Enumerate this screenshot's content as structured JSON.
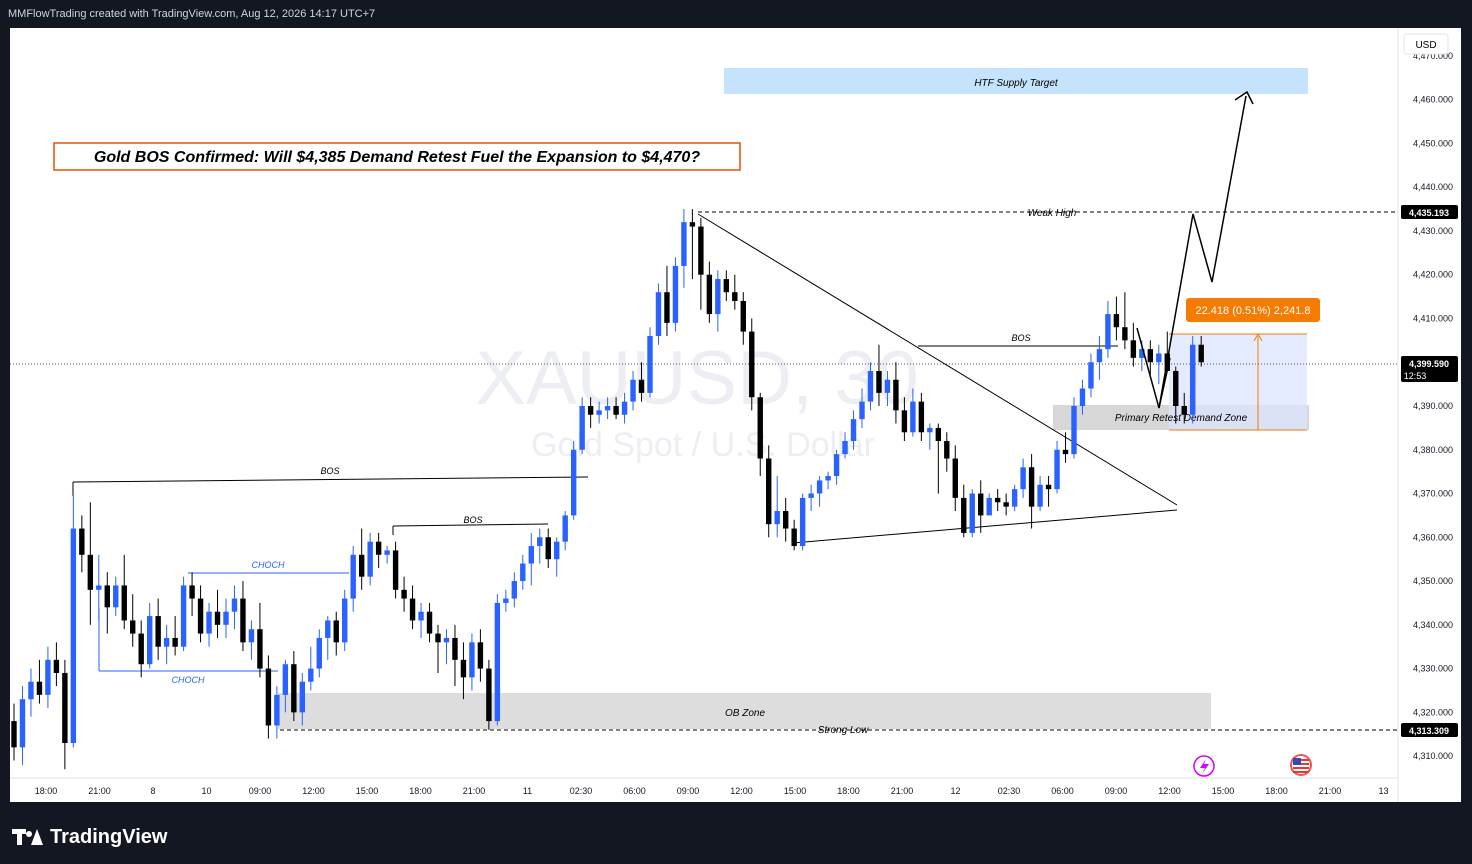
{
  "header": {
    "attribution": "MMFlowTrading created with TradingView.com, Aug 12, 2026 14:17 UTC+7"
  },
  "footer": {
    "brand": "TradingView"
  },
  "watermark": {
    "symbol": "XAUUSD, 30",
    "description": "Gold Spot / U.S. Dollar"
  },
  "chart_data": {
    "type": "candlestick",
    "currency_label": "USD",
    "y_axis": {
      "min": 4305,
      "max": 4475,
      "ticks": [
        4310,
        4320,
        4330,
        4340,
        4350,
        4360,
        4370,
        4380,
        4390,
        4400,
        4410,
        4420,
        4430,
        4440,
        4450,
        4460,
        4470
      ]
    },
    "x_axis_labels": [
      "18:00",
      "21:00",
      "8",
      "10",
      "09:00",
      "12:00",
      "15:00",
      "18:00",
      "21:00",
      "11",
      "02:30",
      "06:00",
      "09:00",
      "12:00",
      "15:00",
      "18:00",
      "21:00",
      "12",
      "02:30",
      "06:00",
      "09:00",
      "12:00",
      "15:00",
      "18:00",
      "21:00",
      "13"
    ],
    "price_labels": {
      "weak_high": "4,435.193",
      "last": "4,399.590",
      "countdown": "12:53",
      "strong_low": "4,313.309"
    },
    "annotations": {
      "title": "Gold BOS Confirmed: Will $4,385 Demand Retest Fuel the Expansion to $4,470?",
      "htf_supply": "HTF Supply Target",
      "weak_high": "Weak High",
      "bos": "BOS",
      "choch": "CHOCH",
      "demand_zone": "Primary Retest Demand Zone",
      "ob_zone": "OB Zone",
      "strong_low": "Strong Low",
      "measure": "22.418 (0.51%) 2,241.8"
    },
    "colors": {
      "up": "#2962ff",
      "down": "#000000",
      "title_border": "#e65100",
      "measure_bg": "#f57c00",
      "zone_blue": "#bbdefb",
      "zone_gray": "#d9d9d9"
    },
    "candles": [
      {
        "o": 4318,
        "h": 4322,
        "l": 4309,
        "c": 4312
      },
      {
        "o": 4312,
        "h": 4326,
        "l": 4308,
        "c": 4323
      },
      {
        "o": 4323,
        "h": 4330,
        "l": 4319,
        "c": 4327
      },
      {
        "o": 4327,
        "h": 4332,
        "l": 4322,
        "c": 4324
      },
      {
        "o": 4324,
        "h": 4335,
        "l": 4321,
        "c": 4332
      },
      {
        "o": 4332,
        "h": 4336,
        "l": 4326,
        "c": 4329
      },
      {
        "o": 4329,
        "h": 4332,
        "l": 4307,
        "c": 4313
      },
      {
        "o": 4313,
        "h": 4370,
        "l": 4312,
        "c": 4362
      },
      {
        "o": 4362,
        "h": 4365,
        "l": 4352,
        "c": 4356
      },
      {
        "o": 4356,
        "h": 4368,
        "l": 4340,
        "c": 4348
      },
      {
        "o": 4348,
        "h": 4356,
        "l": 4341,
        "c": 4349
      },
      {
        "o": 4349,
        "h": 4352,
        "l": 4338,
        "c": 4344
      },
      {
        "o": 4344,
        "h": 4351,
        "l": 4342,
        "c": 4349
      },
      {
        "o": 4349,
        "h": 4356,
        "l": 4339,
        "c": 4341
      },
      {
        "o": 4341,
        "h": 4347,
        "l": 4335,
        "c": 4338
      },
      {
        "o": 4338,
        "h": 4341,
        "l": 4328,
        "c": 4331
      },
      {
        "o": 4331,
        "h": 4345,
        "l": 4330,
        "c": 4342
      },
      {
        "o": 4342,
        "h": 4346,
        "l": 4332,
        "c": 4335
      },
      {
        "o": 4335,
        "h": 4340,
        "l": 4331,
        "c": 4337
      },
      {
        "o": 4337,
        "h": 4342,
        "l": 4333,
        "c": 4335
      },
      {
        "o": 4335,
        "h": 4351,
        "l": 4334,
        "c": 4349
      },
      {
        "o": 4349,
        "h": 4352,
        "l": 4342,
        "c": 4346
      },
      {
        "o": 4346,
        "h": 4349,
        "l": 4336,
        "c": 4338
      },
      {
        "o": 4338,
        "h": 4345,
        "l": 4335,
        "c": 4343
      },
      {
        "o": 4343,
        "h": 4348,
        "l": 4337,
        "c": 4340
      },
      {
        "o": 4340,
        "h": 4346,
        "l": 4337,
        "c": 4343
      },
      {
        "o": 4343,
        "h": 4349,
        "l": 4339,
        "c": 4346
      },
      {
        "o": 4346,
        "h": 4350,
        "l": 4334,
        "c": 4336
      },
      {
        "o": 4336,
        "h": 4341,
        "l": 4332,
        "c": 4339
      },
      {
        "o": 4339,
        "h": 4345,
        "l": 4328,
        "c": 4330
      },
      {
        "o": 4330,
        "h": 4333,
        "l": 4314,
        "c": 4317
      },
      {
        "o": 4317,
        "h": 4326,
        "l": 4314,
        "c": 4324
      },
      {
        "o": 4324,
        "h": 4332,
        "l": 4320,
        "c": 4331
      },
      {
        "o": 4331,
        "h": 4334,
        "l": 4318,
        "c": 4320
      },
      {
        "o": 4320,
        "h": 4329,
        "l": 4317,
        "c": 4327
      },
      {
        "o": 4327,
        "h": 4335,
        "l": 4325,
        "c": 4330
      },
      {
        "o": 4330,
        "h": 4339,
        "l": 4328,
        "c": 4337
      },
      {
        "o": 4337,
        "h": 4342,
        "l": 4332,
        "c": 4341
      },
      {
        "o": 4341,
        "h": 4343,
        "l": 4333,
        "c": 4336
      },
      {
        "o": 4336,
        "h": 4348,
        "l": 4334,
        "c": 4346
      },
      {
        "o": 4346,
        "h": 4358,
        "l": 4343,
        "c": 4356
      },
      {
        "o": 4356,
        "h": 4362,
        "l": 4348,
        "c": 4351
      },
      {
        "o": 4351,
        "h": 4361,
        "l": 4349,
        "c": 4359
      },
      {
        "o": 4359,
        "h": 4361,
        "l": 4353,
        "c": 4356
      },
      {
        "o": 4356,
        "h": 4358,
        "l": 4354,
        "c": 4357
      },
      {
        "o": 4357,
        "h": 4359,
        "l": 4346,
        "c": 4348
      },
      {
        "o": 4348,
        "h": 4351,
        "l": 4343,
        "c": 4346
      },
      {
        "o": 4346,
        "h": 4349,
        "l": 4339,
        "c": 4341
      },
      {
        "o": 4341,
        "h": 4345,
        "l": 4337,
        "c": 4343
      },
      {
        "o": 4343,
        "h": 4345,
        "l": 4336,
        "c": 4338
      },
      {
        "o": 4338,
        "h": 4340,
        "l": 4329,
        "c": 4336
      },
      {
        "o": 4336,
        "h": 4339,
        "l": 4331,
        "c": 4337
      },
      {
        "o": 4337,
        "h": 4340,
        "l": 4326,
        "c": 4332
      },
      {
        "o": 4332,
        "h": 4336,
        "l": 4323,
        "c": 4328
      },
      {
        "o": 4328,
        "h": 4338,
        "l": 4325,
        "c": 4336
      },
      {
        "o": 4336,
        "h": 4339,
        "l": 4327,
        "c": 4330
      },
      {
        "o": 4330,
        "h": 4332,
        "l": 4316,
        "c": 4318
      },
      {
        "o": 4318,
        "h": 4347,
        "l": 4317,
        "c": 4345
      },
      {
        "o": 4345,
        "h": 4348,
        "l": 4343,
        "c": 4346
      },
      {
        "o": 4346,
        "h": 4352,
        "l": 4344,
        "c": 4350
      },
      {
        "o": 4350,
        "h": 4356,
        "l": 4348,
        "c": 4354
      },
      {
        "o": 4354,
        "h": 4361,
        "l": 4349,
        "c": 4358
      },
      {
        "o": 4358,
        "h": 4362,
        "l": 4354,
        "c": 4360
      },
      {
        "o": 4360,
        "h": 4362,
        "l": 4353,
        "c": 4355
      },
      {
        "o": 4355,
        "h": 4360,
        "l": 4351,
        "c": 4359
      },
      {
        "o": 4359,
        "h": 4366,
        "l": 4357,
        "c": 4365
      },
      {
        "o": 4365,
        "h": 4382,
        "l": 4364,
        "c": 4380
      },
      {
        "o": 4380,
        "h": 4392,
        "l": 4379,
        "c": 4390
      },
      {
        "o": 4390,
        "h": 4392,
        "l": 4385,
        "c": 4388
      },
      {
        "o": 4388,
        "h": 4391,
        "l": 4386,
        "c": 4389
      },
      {
        "o": 4389,
        "h": 4392,
        "l": 4387,
        "c": 4390
      },
      {
        "o": 4390,
        "h": 4392,
        "l": 4387,
        "c": 4388
      },
      {
        "o": 4388,
        "h": 4393,
        "l": 4386,
        "c": 4391
      },
      {
        "o": 4391,
        "h": 4398,
        "l": 4389,
        "c": 4396
      },
      {
        "o": 4396,
        "h": 4400,
        "l": 4391,
        "c": 4393
      },
      {
        "o": 4393,
        "h": 4408,
        "l": 4392,
        "c": 4406
      },
      {
        "o": 4406,
        "h": 4418,
        "l": 4404,
        "c": 4416
      },
      {
        "o": 4416,
        "h": 4422,
        "l": 4406,
        "c": 4409
      },
      {
        "o": 4409,
        "h": 4424,
        "l": 4407,
        "c": 4422
      },
      {
        "o": 4422,
        "h": 4435,
        "l": 4417,
        "c": 4432
      },
      {
        "o": 4432,
        "h": 4435,
        "l": 4419,
        "c": 4431
      },
      {
        "o": 4431,
        "h": 4433,
        "l": 4412,
        "c": 4420
      },
      {
        "o": 4420,
        "h": 4423,
        "l": 4409,
        "c": 4411
      },
      {
        "o": 4411,
        "h": 4421,
        "l": 4407,
        "c": 4419
      },
      {
        "o": 4419,
        "h": 4421,
        "l": 4414,
        "c": 4416
      },
      {
        "o": 4416,
        "h": 4420,
        "l": 4412,
        "c": 4414
      },
      {
        "o": 4414,
        "h": 4416,
        "l": 4404,
        "c": 4407
      },
      {
        "o": 4407,
        "h": 4410,
        "l": 4389,
        "c": 4392
      },
      {
        "o": 4392,
        "h": 4393,
        "l": 4374,
        "c": 4378
      },
      {
        "o": 4378,
        "h": 4381,
        "l": 4360,
        "c": 4363
      },
      {
        "o": 4363,
        "h": 4374,
        "l": 4360,
        "c": 4366
      },
      {
        "o": 4366,
        "h": 4369,
        "l": 4359,
        "c": 4362
      },
      {
        "o": 4362,
        "h": 4364,
        "l": 4357,
        "c": 4358
      },
      {
        "o": 4358,
        "h": 4370,
        "l": 4357,
        "c": 4369
      },
      {
        "o": 4369,
        "h": 4372,
        "l": 4366,
        "c": 4370
      },
      {
        "o": 4370,
        "h": 4374,
        "l": 4367,
        "c": 4373
      },
      {
        "o": 4373,
        "h": 4375,
        "l": 4371,
        "c": 4374
      },
      {
        "o": 4374,
        "h": 4380,
        "l": 4372,
        "c": 4379
      },
      {
        "o": 4379,
        "h": 4384,
        "l": 4378,
        "c": 4382
      },
      {
        "o": 4382,
        "h": 4389,
        "l": 4380,
        "c": 4387
      },
      {
        "o": 4387,
        "h": 4394,
        "l": 4385,
        "c": 4391
      },
      {
        "o": 4391,
        "h": 4400,
        "l": 4389,
        "c": 4398
      },
      {
        "o": 4398,
        "h": 4404,
        "l": 4390,
        "c": 4393
      },
      {
        "o": 4393,
        "h": 4398,
        "l": 4390,
        "c": 4396
      },
      {
        "o": 4396,
        "h": 4400,
        "l": 4386,
        "c": 4389
      },
      {
        "o": 4389,
        "h": 4392,
        "l": 4382,
        "c": 4384
      },
      {
        "o": 4384,
        "h": 4394,
        "l": 4383,
        "c": 4391
      },
      {
        "o": 4391,
        "h": 4393,
        "l": 4382,
        "c": 4384
      },
      {
        "o": 4384,
        "h": 4386,
        "l": 4380,
        "c": 4385
      },
      {
        "o": 4385,
        "h": 4386,
        "l": 4370,
        "c": 4382
      },
      {
        "o": 4382,
        "h": 4384,
        "l": 4375,
        "c": 4378
      },
      {
        "o": 4378,
        "h": 4381,
        "l": 4366,
        "c": 4369
      },
      {
        "o": 4369,
        "h": 4372,
        "l": 4360,
        "c": 4361
      },
      {
        "o": 4361,
        "h": 4371,
        "l": 4360,
        "c": 4370
      },
      {
        "o": 4370,
        "h": 4373,
        "l": 4361,
        "c": 4365
      },
      {
        "o": 4365,
        "h": 4370,
        "l": 4366,
        "c": 4369
      },
      {
        "o": 4369,
        "h": 4371,
        "l": 4366,
        "c": 4368
      },
      {
        "o": 4368,
        "h": 4370,
        "l": 4365,
        "c": 4367
      },
      {
        "o": 4367,
        "h": 4372,
        "l": 4366,
        "c": 4371
      },
      {
        "o": 4371,
        "h": 4378,
        "l": 4369,
        "c": 4376
      },
      {
        "o": 4376,
        "h": 4379,
        "l": 4362,
        "c": 4367
      },
      {
        "o": 4367,
        "h": 4374,
        "l": 4366,
        "c": 4372
      },
      {
        "o": 4372,
        "h": 4374,
        "l": 4367,
        "c": 4371
      },
      {
        "o": 4371,
        "h": 4382,
        "l": 4370,
        "c": 4380
      },
      {
        "o": 4380,
        "h": 4384,
        "l": 4377,
        "c": 4379
      },
      {
        "o": 4379,
        "h": 4392,
        "l": 4378,
        "c": 4390
      },
      {
        "o": 4390,
        "h": 4396,
        "l": 4388,
        "c": 4394
      },
      {
        "o": 4394,
        "h": 4402,
        "l": 4392,
        "c": 4400
      },
      {
        "o": 4400,
        "h": 4406,
        "l": 4396,
        "c": 4403
      },
      {
        "o": 4403,
        "h": 4414,
        "l": 4401,
        "c": 4411
      },
      {
        "o": 4411,
        "h": 4415,
        "l": 4405,
        "c": 4408
      },
      {
        "o": 4408,
        "h": 4416,
        "l": 4403,
        "c": 4405
      },
      {
        "o": 4405,
        "h": 4409,
        "l": 4399,
        "c": 4401
      },
      {
        "o": 4401,
        "h": 4405,
        "l": 4398,
        "c": 4403
      },
      {
        "o": 4403,
        "h": 4405,
        "l": 4397,
        "c": 4400
      },
      {
        "o": 4400,
        "h": 4404,
        "l": 4395,
        "c": 4402
      },
      {
        "o": 4402,
        "h": 4407,
        "l": 4398,
        "c": 4398
      },
      {
        "o": 4398,
        "h": 4399,
        "l": 4386,
        "c": 4390
      },
      {
        "o": 4390,
        "h": 4393,
        "l": 4386,
        "c": 4388
      },
      {
        "o": 4388,
        "h": 4406,
        "l": 4386,
        "c": 4404
      },
      {
        "o": 4404,
        "h": 4406,
        "l": 4399,
        "c": 4400
      }
    ]
  }
}
